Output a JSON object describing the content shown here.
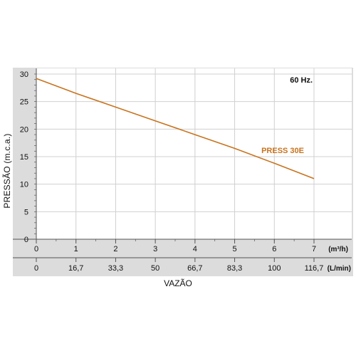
{
  "chart_data": {
    "type": "line",
    "ylabel": "PRESSÃO (m.c.a.)",
    "xlabel": "VAZÃO",
    "annotation": "60 Hz.",
    "x_axis_primary": {
      "unit": "(m³/h)",
      "ticks": [
        "0",
        "1",
        "2",
        "3",
        "4",
        "5",
        "6",
        "7"
      ],
      "range": [
        0,
        7
      ]
    },
    "x_axis_secondary": {
      "unit": "(L/min)",
      "ticks": [
        "0",
        "16,7",
        "33,3",
        "50",
        "66,7",
        "83,3",
        "100",
        "116,7"
      ],
      "range": [
        0,
        116.7
      ]
    },
    "y_ticks": [
      "0",
      "5",
      "10",
      "15",
      "20",
      "25",
      "30"
    ],
    "ylim": [
      0,
      30
    ],
    "grid": true,
    "series": [
      {
        "name": "PRESS 30E",
        "color": "#c8731e",
        "x": [
          0,
          1,
          2,
          3,
          4,
          5,
          6,
          7
        ],
        "y": [
          29.2,
          26.5,
          24.0,
          21.5,
          19.0,
          16.5,
          13.8,
          11.0
        ]
      }
    ],
    "colors": {
      "panel": "#dcdcdc",
      "plot_area": "#ffffff",
      "grid": "#d0d0d0",
      "axis": "#555555",
      "text": "#111111"
    }
  }
}
